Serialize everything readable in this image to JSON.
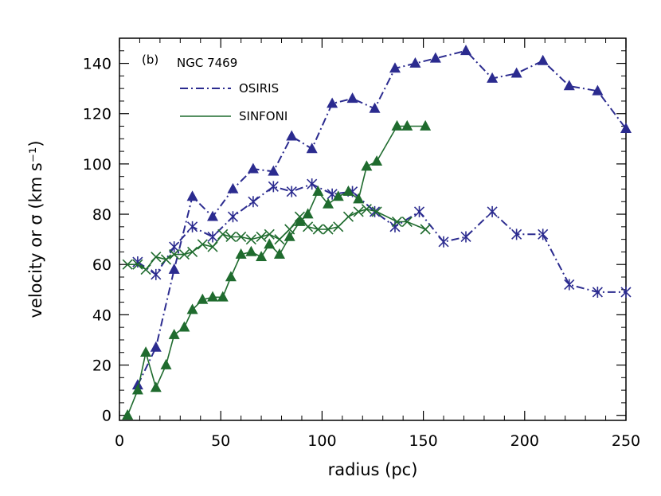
{
  "chart_data": {
    "type": "line",
    "xlabel": "radius (pc)",
    "ylabel": "velocity or σ (km s⁻¹)",
    "xlim": [
      0,
      250
    ],
    "ylim": [
      -2,
      150
    ],
    "xticks": [
      0,
      50,
      100,
      150,
      200,
      250
    ],
    "yticks": [
      0,
      20,
      40,
      60,
      80,
      100,
      120,
      140
    ],
    "grid": false,
    "annotations": [
      "(b)",
      "NGC 7469"
    ],
    "legend": {
      "placement": "top-left",
      "entries": [
        {
          "label": "OSIRIS",
          "style": "dash-dot",
          "color": "#2b2b8f"
        },
        {
          "label": "SINFONI",
          "style": "solid",
          "color": "#1f6b2e"
        }
      ]
    },
    "series": [
      {
        "instrument": "OSIRIS",
        "quantity": "velocity",
        "marker": "triangle",
        "color": "#2b2b8f",
        "line": "dash-dot",
        "x": [
          9,
          18,
          27,
          36,
          46,
          56,
          66,
          76,
          85,
          95,
          105,
          115,
          126,
          136,
          146,
          156,
          171,
          184,
          196,
          209,
          222,
          236,
          250
        ],
        "y": [
          12,
          27,
          58,
          87,
          79,
          90,
          98,
          97,
          111,
          106,
          124,
          126,
          122,
          138,
          140,
          142,
          145,
          134,
          136,
          141,
          131,
          129,
          114
        ]
      },
      {
        "instrument": "OSIRIS",
        "quantity": "dispersion",
        "marker": "asterisk",
        "color": "#2b2b8f",
        "line": "dash-dot",
        "x": [
          9,
          18,
          27,
          36,
          46,
          56,
          66,
          76,
          85,
          95,
          105,
          115,
          126,
          136,
          148,
          160,
          171,
          184,
          196,
          209,
          222,
          236,
          250
        ],
        "y": [
          61,
          56,
          67,
          75,
          71,
          79,
          85,
          91,
          89,
          92,
          88,
          89,
          81,
          75,
          81,
          69,
          71,
          81,
          72,
          72,
          52,
          49,
          49
        ]
      },
      {
        "instrument": "SINFONI",
        "quantity": "velocity",
        "marker": "triangle",
        "color": "#1f6b2e",
        "line": "solid",
        "x": [
          4,
          9,
          13,
          18,
          23,
          27,
          32,
          36,
          41,
          46,
          51,
          55,
          60,
          65,
          70,
          74,
          79,
          84,
          89,
          93,
          98,
          103,
          108,
          113,
          118,
          122,
          127,
          137,
          142,
          151
        ],
        "y": [
          0,
          10,
          25,
          11,
          20,
          32,
          35,
          42,
          46,
          47,
          47,
          55,
          64,
          65,
          63,
          68,
          64,
          71,
          77,
          80,
          89,
          84,
          87,
          89,
          86,
          99,
          101,
          115,
          115,
          115
        ]
      },
      {
        "instrument": "SINFONI",
        "quantity": "dispersion",
        "marker": "x-cross",
        "color": "#1f6b2e",
        "line": "solid",
        "x": [
          4,
          9,
          13,
          18,
          23,
          27,
          32,
          36,
          41,
          46,
          51,
          55,
          60,
          65,
          70,
          74,
          79,
          84,
          89,
          93,
          98,
          103,
          108,
          113,
          118,
          122,
          127,
          137,
          142,
          151
        ],
        "y": [
          60,
          60,
          58,
          63,
          62,
          64,
          64,
          65,
          68,
          67,
          72,
          71,
          71,
          70,
          71,
          72,
          70,
          74,
          79,
          75,
          74,
          74,
          75,
          79,
          81,
          82,
          81,
          77,
          77,
          74
        ]
      }
    ]
  }
}
